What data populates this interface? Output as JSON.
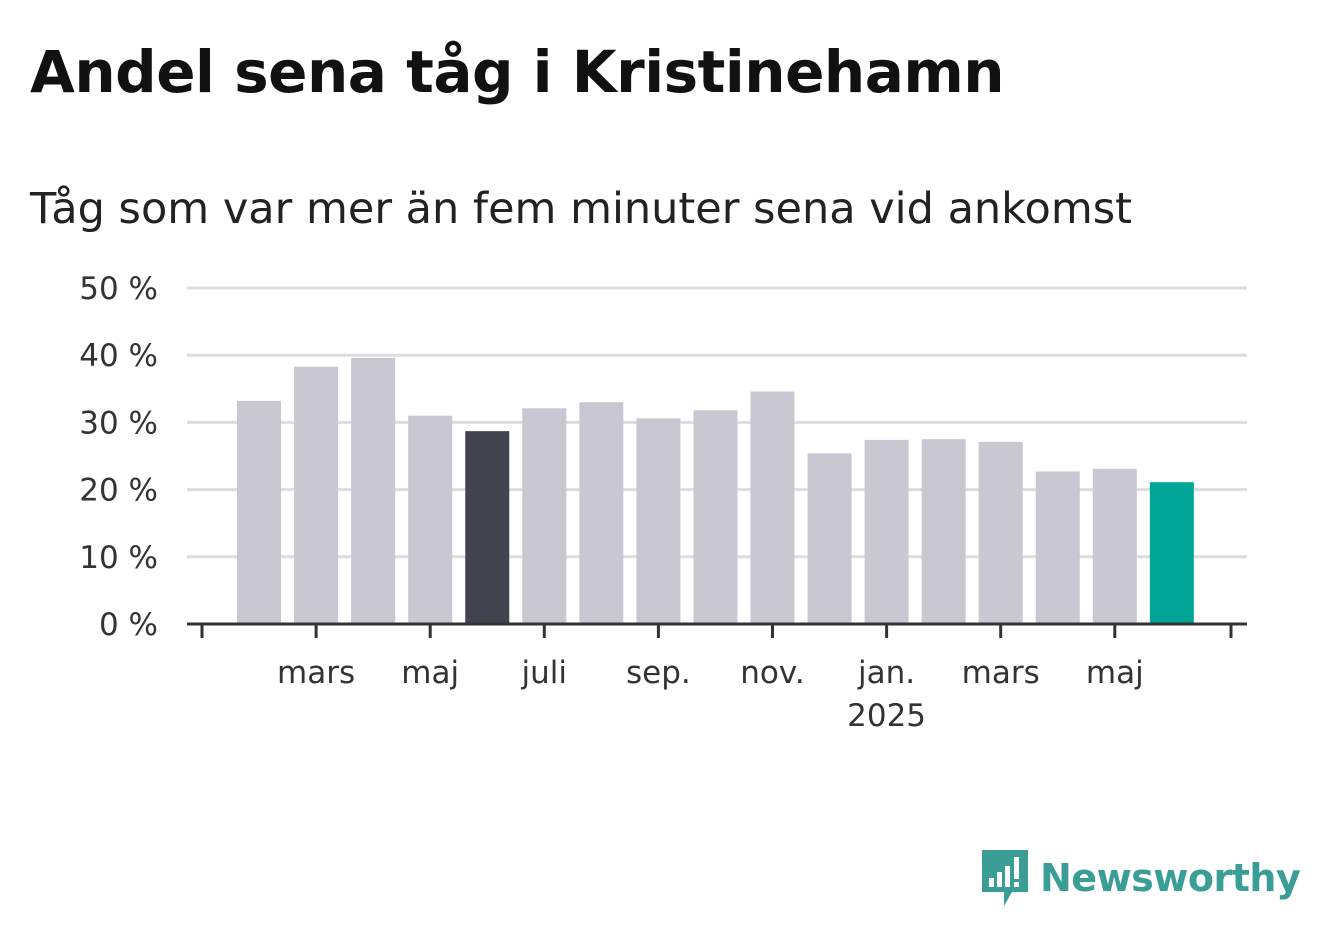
{
  "title": "Andel sena tåg i Kristinehamn",
  "subtitle": "Tåg som var mer än fem minuter sena vid ankomst",
  "logo": {
    "text": "Newsworthy",
    "icon": "newsworthy-logo-icon",
    "color": "#3a9e97"
  },
  "colors": {
    "default_bar": "#c8c7d2",
    "highlight_bar": "#43424f",
    "latest_bar": "#00a597",
    "grid": "#dddddd",
    "axis": "#333333"
  },
  "chart_data": {
    "type": "bar",
    "ylim": [
      0,
      50
    ],
    "yticks": [
      "0 %",
      "10 %",
      "20 %",
      "30 %",
      "40 %",
      "50 %"
    ],
    "grid": true,
    "x_tick_labels": [
      {
        "month_index": 2,
        "label": "mars",
        "sub": ""
      },
      {
        "month_index": 4,
        "label": "maj",
        "sub": ""
      },
      {
        "month_index": 6,
        "label": "juli",
        "sub": ""
      },
      {
        "month_index": 8,
        "label": "sep.",
        "sub": ""
      },
      {
        "month_index": 10,
        "label": "nov.",
        "sub": ""
      },
      {
        "month_index": 12,
        "label": "jan.",
        "sub": "2025"
      },
      {
        "month_index": 14,
        "label": "mars",
        "sub": ""
      },
      {
        "month_index": 16,
        "label": "maj",
        "sub": ""
      }
    ],
    "bars": [
      {
        "month_index": 1,
        "value": 33.2,
        "style": "default"
      },
      {
        "month_index": 2,
        "value": 38.3,
        "style": "default"
      },
      {
        "month_index": 3,
        "value": 39.6,
        "style": "default"
      },
      {
        "month_index": 4,
        "value": 31.0,
        "style": "default"
      },
      {
        "month_index": 5,
        "value": 28.7,
        "style": "highlight"
      },
      {
        "month_index": 6,
        "value": 32.1,
        "style": "default"
      },
      {
        "month_index": 7,
        "value": 33.0,
        "style": "default"
      },
      {
        "month_index": 8,
        "value": 30.6,
        "style": "default"
      },
      {
        "month_index": 9,
        "value": 31.8,
        "style": "default"
      },
      {
        "month_index": 10,
        "value": 34.6,
        "style": "default"
      },
      {
        "month_index": 11,
        "value": 25.4,
        "style": "default"
      },
      {
        "month_index": 12,
        "value": 27.4,
        "style": "default"
      },
      {
        "month_index": 13,
        "value": 27.5,
        "style": "default"
      },
      {
        "month_index": 14,
        "value": 27.1,
        "style": "default"
      },
      {
        "month_index": 15,
        "value": 22.7,
        "style": "default"
      },
      {
        "month_index": 16,
        "value": 23.1,
        "style": "default"
      },
      {
        "month_index": 17,
        "value": 21.1,
        "style": "latest"
      }
    ]
  }
}
